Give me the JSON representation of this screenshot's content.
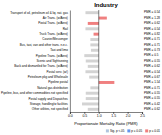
{
  "chart_data": {
    "type": "bar",
    "orientation": "horizontal",
    "title": "Industry",
    "xlabel": "Proportionate Mortality Ratio (PMR)",
    "categories": [
      "Transport of oil, petroleum oil & liq. nat. gas",
      "Air Trans. (w/Aero)",
      "Postal Trans. (w/Aero)",
      "Rail",
      "Truck Trans. (w/Aero)",
      "Courier/Messenger",
      "Bus, taxi, van and other trans. n.e.c.",
      "Taxi and limo",
      "Pipeline Trans. (w/Aero)",
      "Scenic and Sightseeing",
      "Back and dismantled for Trans. (w/Aero)",
      "Postal serv. (w/)",
      "Petroleum pkg and Wholesale",
      "Pipeline postal",
      "Natural gas distribution",
      "Pipeline, bus, and other commodities not specified",
      "Postal supply and Dispatches",
      "Storage, handling/w facilities",
      "Other utilities, not specified"
    ],
    "values": [
      0.54,
      1.28,
      0.62,
      0.54,
      0.82,
      0.71,
      0.71,
      0.73,
      0.5,
      0.55,
      0.62,
      0.54,
      0.67,
      1.54,
      0.71,
      0.55,
      0.55,
      0.42,
      0.62
    ],
    "colors": [
      "#d3d3d3",
      "#f08080",
      "#f08080",
      "#d3d3d3",
      "#f08080",
      "#d3d3d3",
      "#d3d3d3",
      "#d3d3d3",
      "#d3d3d3",
      "#d3d3d3",
      "#d3d3d3",
      "#d3d3d3",
      "#d3d3d3",
      "#f08080",
      "#d3d3d3",
      "#d3d3d3",
      "#d3d3d3",
      "#d3d3d3",
      "#d3d3d3"
    ],
    "reference_line": 1.0,
    "data_labels": true,
    "value_labels": [
      "PMR = 0.54",
      "PMR = 1.28",
      "PMR = 0.62",
      "PMR = 0.54",
      "PMR = 0.82",
      "PMR = 0.71",
      "PMR = 0.71",
      "PMR = 0.73",
      "PMR = 0.5",
      "PMR = 0.55",
      "PMR = 0.62",
      "PMR = 0.54",
      "PMR = 0.67",
      "PMR = 1.54",
      "PMR = 0.71",
      "PMR = 0.55",
      "PMR = 0.55",
      "PMR = 0.42",
      "PMR = 0.62"
    ],
    "xlim": [
      0.0,
      2.5
    ],
    "xticks": [
      {
        "value": 0.0,
        "label": "0.0"
      },
      0.5,
      {
        "value": 1.0,
        "label": "1.0"
      },
      1.5,
      {
        "value": 2.0,
        "label": "2.0"
      },
      2.5
    ],
    "grid": false,
    "legend": "lower right",
    "legend_entries": [
      {
        "name": "Sig. p <.05",
        "color": "#b0c4de"
      },
      {
        "name": "p ≤ 0.05",
        "color": "#6495ed"
      },
      {
        "name": "p ≤ 0.01",
        "color": "#f08080"
      }
    ]
  }
}
